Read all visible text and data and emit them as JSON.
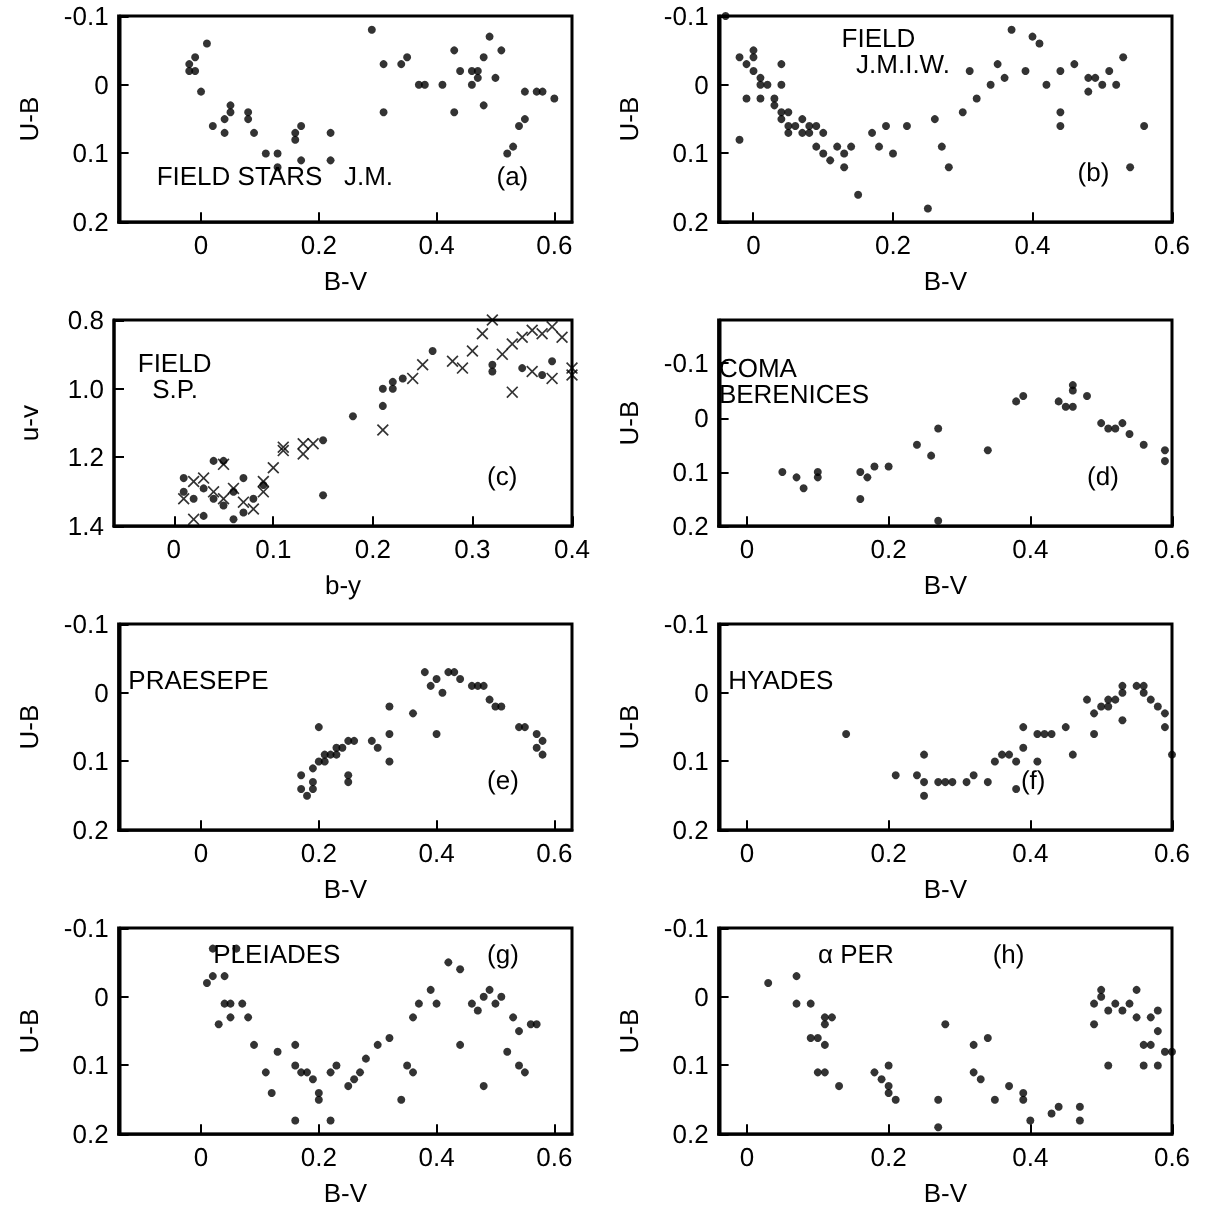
{
  "chart_data": [
    {
      "type": "scatter",
      "xlabel": "B-V",
      "ylabel": "U-B",
      "annotations": [
        "FIELD STARS   J.M.",
        "(a)"
      ],
      "xlim": [
        -0.14,
        0.63
      ],
      "ylim": [
        0.2,
        -0.1
      ],
      "xticks": [
        0,
        0.2,
        0.4,
        0.6
      ],
      "yticks": [
        -0.1,
        0,
        0.1,
        0.2
      ],
      "marker": "circle",
      "color": "#000000",
      "x": [
        -0.02,
        -0.02,
        -0.01,
        -0.01,
        0,
        0.01,
        0.02,
        0.04,
        0.04,
        0.05,
        0.05,
        0.08,
        0.09,
        0.08,
        0.11,
        0.13,
        0.13,
        0.16,
        0.16,
        0.17,
        0.17,
        0.22,
        0.22,
        0.29,
        0.31,
        0.31,
        0.34,
        0.35,
        0.37,
        0.38,
        0.41,
        0.43,
        0.43,
        0.44,
        0.46,
        0.46,
        0.47,
        0.47,
        0.48,
        0.48,
        0.49,
        0.5,
        0.51,
        0.52,
        0.53,
        0.54,
        0.55,
        0.55,
        0.57,
        0.58,
        0.6
      ],
      "values": [
        -0.03,
        -0.02,
        -0.04,
        -0.02,
        0.01,
        -0.06,
        0.06,
        0.05,
        0.07,
        0.03,
        0.04,
        0.04,
        0.07,
        0.05,
        0.1,
        0.1,
        0.12,
        0.07,
        0.08,
        0.06,
        0.11,
        0.07,
        0.11,
        -0.08,
        0.04,
        -0.03,
        -0.03,
        -0.04,
        0,
        0,
        0,
        0.04,
        -0.05,
        -0.02,
        -0.02,
        0,
        -0.01,
        -0.02,
        0.03,
        -0.04,
        -0.07,
        -0.01,
        -0.05,
        0.1,
        0.09,
        0.06,
        0.01,
        0.05,
        0.01,
        0.01,
        0.02
      ]
    },
    {
      "type": "scatter",
      "xlabel": "B-V",
      "ylabel": "U-B",
      "annotations": [
        "FIELD\n  J.M.I.W.",
        "(b)"
      ],
      "xlim": [
        -0.05,
        0.6
      ],
      "ylim": [
        0.2,
        -0.1
      ],
      "xticks": [
        0,
        0.2,
        0.4,
        0.6
      ],
      "yticks": [
        -0.1,
        0,
        0.1,
        0.2
      ],
      "marker": "circle",
      "color": "#000000",
      "x": [
        -0.04,
        -0.02,
        -0.01,
        0,
        0,
        -0.01,
        -0.02,
        0.01,
        0.01,
        0.02,
        0.03,
        0.03,
        0.04,
        0.04,
        0.04,
        0.05,
        0.05,
        0.06,
        0.07,
        0.07,
        0.08,
        0.08,
        0.09,
        0.1,
        0.1,
        0.11,
        0.12,
        0.13,
        0.13,
        0.14,
        0.15,
        0.17,
        0.18,
        0.19,
        0.2,
        0.22,
        0.25,
        0.26,
        0.27,
        0.28,
        0.3,
        0.31,
        0.32,
        0.34,
        0.35,
        0.36,
        0.37,
        0.39,
        0.4,
        0.41,
        0.42,
        0.44,
        0.44,
        0.44,
        0.46,
        0.48,
        0.48,
        0.49,
        0.5,
        0.51,
        0.52,
        0.53,
        0.54,
        0.56,
        0,
        0.01,
        0.04,
        0.05,
        0.09
      ],
      "values": [
        -0.1,
        -0.04,
        -0.03,
        -0.05,
        -0.04,
        0.02,
        0.08,
        0,
        0.02,
        0,
        0.03,
        0.02,
        0.04,
        -0.03,
        0.05,
        0.06,
        0.04,
        0.06,
        0.05,
        0.07,
        0.07,
        0.06,
        0.09,
        0.1,
        0.07,
        0.11,
        0.09,
        0.12,
        0.1,
        0.09,
        0.16,
        0.07,
        0.09,
        0.06,
        0.1,
        0.06,
        0.18,
        0.05,
        0.09,
        0.12,
        0.04,
        -0.02,
        0.02,
        0,
        -0.03,
        -0.01,
        -0.08,
        -0.02,
        -0.07,
        -0.06,
        0,
        0.04,
        0.06,
        -0.02,
        -0.03,
        -0.01,
        0.01,
        -0.01,
        0,
        -0.02,
        0,
        -0.04,
        0.12,
        0.06,
        -0.02,
        -0.01,
        0,
        0.07,
        0.06
      ]
    },
    {
      "type": "scatter",
      "xlabel": "b-y",
      "ylabel": "u-v",
      "annotations": [
        "FIELD\n  S.P.",
        "(c)"
      ],
      "xlim": [
        -0.06,
        0.4
      ],
      "ylim": [
        1.4,
        0.8
      ],
      "xticks": [
        0,
        0.1,
        0.2,
        0.3,
        0.4
      ],
      "yticks": [
        0.8,
        {
          "value": 1,
          "label": "1.0"
        },
        1.2,
        1.4
      ],
      "series": [
        {
          "color": "#000000",
          "marker": "circle",
          "x": [
            0.01,
            0.01,
            0.02,
            0.03,
            0.03,
            0.04,
            0.05,
            0.06,
            0.06,
            0.07,
            0.07,
            0.08,
            0.09,
            0.04,
            0.05,
            0.15,
            0.15,
            0.18,
            0.21,
            0.22,
            0.22,
            0.23,
            0.21,
            0.26,
            0.32,
            0.32,
            0.35,
            0.37,
            0.38
          ],
          "values": [
            1.26,
            1.3,
            1.32,
            1.29,
            1.37,
            1.32,
            1.34,
            1.38,
            1.3,
            1.36,
            1.26,
            1.32,
            1.28,
            1.21,
            1.21,
            1.15,
            1.31,
            1.08,
            1,
            0.98,
            1,
            0.97,
            1.05,
            0.89,
            0.95,
            0.93,
            0.94,
            0.96,
            0.92
          ]
        },
        {
          "color": "#000000",
          "marker": "cross",
          "x": [
            0.01,
            0.02,
            0.02,
            0.03,
            0.04,
            0.05,
            0.05,
            0.06,
            0.07,
            0.08,
            0.09,
            0.09,
            0.1,
            0.11,
            0.11,
            0.13,
            0.13,
            0.14,
            0.21,
            0.24,
            0.25,
            0.28,
            0.29,
            0.3,
            0.31,
            0.32,
            0.33,
            0.34,
            0.35,
            0.36,
            0.37,
            0.38,
            0.39,
            0.4,
            0.34,
            0.36,
            0.38,
            0.4
          ],
          "values": [
            1.32,
            1.27,
            1.38,
            1.26,
            1.3,
            1.22,
            1.32,
            1.29,
            1.33,
            1.35,
            1.3,
            1.27,
            1.23,
            1.18,
            1.17,
            1.19,
            1.16,
            1.16,
            1.12,
            0.97,
            0.93,
            0.92,
            0.94,
            0.89,
            0.84,
            0.8,
            0.9,
            0.87,
            0.85,
            0.83,
            0.84,
            0.82,
            0.85,
            0.96,
            1.01,
            0.95,
            0.97,
            0.94
          ]
        }
      ]
    },
    {
      "type": "scatter",
      "xlabel": "B-V",
      "ylabel": "U-B",
      "annotations": [
        "COMA\nBERENICES",
        "(d)"
      ],
      "xlim": [
        -0.04,
        0.6
      ],
      "ylim": [
        0.2,
        -0.18
      ],
      "xticks": [
        0,
        0.2,
        0.4,
        0.6
      ],
      "yticks": [
        -0.1,
        0,
        0.1,
        0.2
      ],
      "marker": "circle",
      "color": "#000000",
      "x": [
        0.05,
        0.07,
        0.08,
        0.1,
        0.1,
        0.16,
        0.17,
        0.16,
        0.18,
        0.2,
        0.24,
        0.26,
        0.27,
        0.27,
        0.34,
        0.38,
        0.39,
        0.44,
        0.45,
        0.46,
        0.46,
        0.46,
        0.48,
        0.5,
        0.51,
        0.52,
        0.53,
        0.54,
        0.56,
        0.59,
        0.59
      ],
      "values": [
        0.1,
        0.11,
        0.13,
        0.1,
        0.11,
        0.1,
        0.11,
        0.15,
        0.09,
        0.09,
        0.05,
        0.07,
        0.02,
        0.19,
        0.06,
        -0.03,
        -0.04,
        -0.03,
        -0.02,
        -0.05,
        -0.02,
        -0.06,
        -0.04,
        0.01,
        0.02,
        0.02,
        0.01,
        0.03,
        0.05,
        0.06,
        0.08
      ]
    },
    {
      "type": "scatter",
      "xlabel": "B-V",
      "ylabel": "U-B",
      "annotations": [
        "PRAESEPE",
        "(e)"
      ],
      "xlim": [
        -0.14,
        0.63
      ],
      "ylim": [
        0.2,
        -0.1
      ],
      "xticks": [
        0,
        0.2,
        0.4,
        0.6
      ],
      "yticks": [
        -0.1,
        0,
        0.1,
        0.2
      ],
      "marker": "circle",
      "color": "#000000",
      "x": [
        0.17,
        0.17,
        0.18,
        0.19,
        0.19,
        0.19,
        0.2,
        0.2,
        0.21,
        0.21,
        0.22,
        0.23,
        0.23,
        0.24,
        0.25,
        0.25,
        0.25,
        0.26,
        0.29,
        0.3,
        0.32,
        0.32,
        0.32,
        0.36,
        0.38,
        0.39,
        0.4,
        0.4,
        0.41,
        0.42,
        0.43,
        0.44,
        0.46,
        0.47,
        0.48,
        0.49,
        0.5,
        0.51,
        0.54,
        0.55,
        0.57,
        0.58,
        0.58,
        0.57
      ],
      "values": [
        0.12,
        0.14,
        0.15,
        0.11,
        0.13,
        0.14,
        0.05,
        0.1,
        0.1,
        0.09,
        0.09,
        0.08,
        0.09,
        0.08,
        0.07,
        0.12,
        0.13,
        0.07,
        0.07,
        0.08,
        0.06,
        0.1,
        0.02,
        0.03,
        -0.03,
        -0.01,
        0.06,
        -0.02,
        0,
        -0.03,
        -0.03,
        -0.02,
        -0.01,
        -0.01,
        -0.01,
        0.01,
        0.02,
        0.02,
        0.05,
        0.05,
        0.06,
        0.07,
        0.09,
        0.08
      ]
    },
    {
      "type": "scatter",
      "xlabel": "B-V",
      "ylabel": "U-B",
      "annotations": [
        "HYADES",
        "(f)"
      ],
      "xlim": [
        -0.04,
        0.6
      ],
      "ylim": [
        0.2,
        -0.1
      ],
      "xticks": [
        0,
        0.2,
        0.4,
        0.6
      ],
      "yticks": [
        -0.1,
        0,
        0.1,
        0.2
      ],
      "marker": "circle",
      "color": "#000000",
      "x": [
        0.14,
        0.21,
        0.24,
        0.25,
        0.25,
        0.25,
        0.27,
        0.28,
        0.29,
        0.31,
        0.32,
        0.34,
        0.35,
        0.36,
        0.37,
        0.38,
        0.38,
        0.39,
        0.39,
        0.41,
        0.41,
        0.42,
        0.43,
        0.45,
        0.46,
        0.48,
        0.49,
        0.49,
        0.5,
        0.51,
        0.52,
        0.53,
        0.55,
        0.56,
        0.57,
        0.58,
        0.59,
        0.59,
        0.6,
        0.51,
        0.53,
        0.53,
        0.56
      ],
      "values": [
        0.06,
        0.12,
        0.12,
        0.09,
        0.15,
        0.13,
        0.13,
        0.13,
        0.13,
        0.13,
        0.12,
        0.13,
        0.1,
        0.09,
        0.09,
        0.14,
        0.1,
        0.05,
        0.08,
        0.06,
        0.1,
        0.06,
        0.06,
        0.05,
        0.09,
        0.01,
        0.06,
        0.03,
        0.02,
        0.01,
        0.01,
        0,
        -0.01,
        0,
        0.01,
        0.02,
        0.03,
        0.05,
        0.09,
        0.02,
        0.04,
        -0.01,
        -0.01
      ]
    },
    {
      "type": "scatter",
      "xlabel": "B-V",
      "ylabel": "U-B",
      "annotations": [
        "PLEIADES",
        "(g)"
      ],
      "xlim": [
        -0.14,
        0.63
      ],
      "ylim": [
        0.2,
        -0.1
      ],
      "xticks": [
        0,
        0.2,
        0.4,
        0.6
      ],
      "yticks": [
        -0.1,
        0,
        0.1,
        0.2
      ],
      "marker": "circle",
      "color": "#000000",
      "x": [
        0.02,
        0.01,
        0.02,
        0.04,
        0.03,
        0.04,
        0.05,
        0.05,
        0.06,
        0.07,
        0.08,
        0.09,
        0.11,
        0.12,
        0.13,
        0.16,
        0.16,
        0.16,
        0.17,
        0.18,
        0.19,
        0.2,
        0.2,
        0.22,
        0.22,
        0.23,
        0.25,
        0.26,
        0.27,
        0.28,
        0.3,
        0.32,
        0.34,
        0.35,
        0.36,
        0.36,
        0.37,
        0.39,
        0.4,
        0.42,
        0.44,
        0.44,
        0.46,
        0.47,
        0.48,
        0.48,
        0.49,
        0.5,
        0.51,
        0.52,
        0.53,
        0.54,
        0.54,
        0.55,
        0.56,
        0.57
      ],
      "values": [
        -0.07,
        -0.02,
        -0.03,
        -0.03,
        0.04,
        0.01,
        0.03,
        0.01,
        -0.07,
        0.01,
        0.03,
        0.07,
        0.11,
        0.14,
        0.08,
        0.1,
        0.18,
        0.07,
        0.11,
        0.11,
        0.12,
        0.14,
        0.15,
        0.18,
        0.11,
        0.1,
        0.13,
        0.12,
        0.11,
        0.09,
        0.07,
        0.06,
        0.15,
        0.1,
        0.11,
        0.03,
        0.01,
        -0.01,
        0.01,
        -0.05,
        -0.04,
        0.07,
        0.01,
        0.02,
        0,
        0.13,
        -0.01,
        0.01,
        0,
        0.08,
        0.03,
        0.1,
        0.05,
        0.11,
        0.04,
        0.04
      ]
    },
    {
      "type": "scatter",
      "xlabel": "B-V",
      "ylabel": "U-B",
      "annotations": [
        "α PER",
        "(h)"
      ],
      "xlim": [
        -0.04,
        0.6
      ],
      "ylim": [
        0.2,
        -0.1
      ],
      "xticks": [
        0,
        0.2,
        0.4,
        0.6
      ],
      "yticks": [
        -0.1,
        0,
        0.1,
        0.2
      ],
      "marker": "circle",
      "color": "#000000",
      "x": [
        0.03,
        0.07,
        0.07,
        0.09,
        0.09,
        0.1,
        0.11,
        0.11,
        0.11,
        0.12,
        0.1,
        0.11,
        0.13,
        0.18,
        0.19,
        0.2,
        0.2,
        0.21,
        0.2,
        0.28,
        0.27,
        0.27,
        0.32,
        0.32,
        0.33,
        0.34,
        0.35,
        0.37,
        0.39,
        0.39,
        0.4,
        0.43,
        0.44,
        0.47,
        0.47,
        0.49,
        0.49,
        0.51,
        0.51,
        0.52,
        0.53,
        0.54,
        0.55,
        0.55,
        0.56,
        0.56,
        0.57,
        0.57,
        0.58,
        0.58,
        0.58,
        0.59,
        0.6,
        0.5,
        0.5
      ],
      "values": [
        -0.02,
        -0.03,
        0.01,
        0.01,
        0.06,
        0.06,
        0.04,
        0.07,
        0.03,
        0.03,
        0.11,
        0.11,
        0.13,
        0.11,
        0.12,
        0.13,
        0.14,
        0.15,
        0.1,
        0.04,
        0.15,
        0.19,
        0.07,
        0.11,
        0.12,
        0.06,
        0.15,
        0.13,
        0.14,
        0.15,
        0.18,
        0.17,
        0.16,
        0.16,
        0.18,
        0.01,
        0.04,
        0.02,
        0.1,
        0.01,
        0.02,
        0.01,
        -0.01,
        0.03,
        0.07,
        0.1,
        0.03,
        0.07,
        0.05,
        0.02,
        0.1,
        0.08,
        0.08,
        0,
        -0.01
      ]
    }
  ]
}
